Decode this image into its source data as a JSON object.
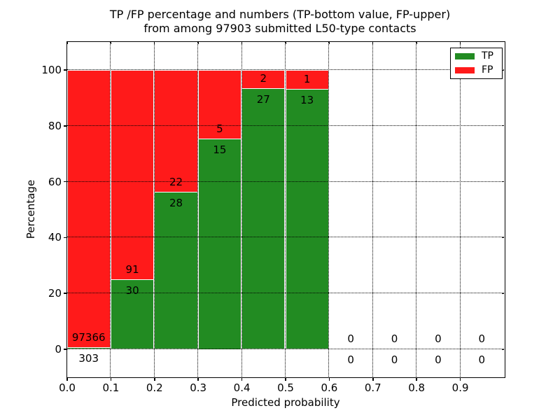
{
  "chart_data": {
    "type": "bar",
    "stacked": true,
    "title_line1": "TP /FP percentage and numbers (TP-bottom value, FP-upper)",
    "title_line2": "from among 97903 submitted L50-type contacts",
    "xlabel": "Predicted probability",
    "ylabel": "Percentage",
    "xlim": [
      0.0,
      1.0
    ],
    "ylim": [
      -9.8,
      110
    ],
    "xticks": [
      "0.0",
      "0.1",
      "0.2",
      "0.3",
      "0.4",
      "0.5",
      "0.6",
      "0.7",
      "0.8",
      "0.9"
    ],
    "yticks": [
      "0",
      "20",
      "40",
      "60",
      "80",
      "100"
    ],
    "grid": "dotted",
    "legend_position": "upper-right",
    "total_submitted": 97903,
    "bins": [
      {
        "range": [
          0.0,
          0.1
        ],
        "tp_count": 303,
        "fp_count": 97366,
        "tp_pct": 0.31,
        "fp_pct": 99.69
      },
      {
        "range": [
          0.1,
          0.2
        ],
        "tp_count": 30,
        "fp_count": 91,
        "tp_pct": 24.79,
        "fp_pct": 75.21
      },
      {
        "range": [
          0.2,
          0.3
        ],
        "tp_count": 28,
        "fp_count": 22,
        "tp_pct": 56.0,
        "fp_pct": 44.0
      },
      {
        "range": [
          0.3,
          0.4
        ],
        "tp_count": 15,
        "fp_count": 5,
        "tp_pct": 75.0,
        "fp_pct": 25.0
      },
      {
        "range": [
          0.4,
          0.5
        ],
        "tp_count": 27,
        "fp_count": 2,
        "tp_pct": 93.1,
        "fp_pct": 6.9
      },
      {
        "range": [
          0.5,
          0.6
        ],
        "tp_count": 13,
        "fp_count": 1,
        "tp_pct": 92.86,
        "fp_pct": 7.14
      },
      {
        "range": [
          0.6,
          0.7
        ],
        "tp_count": 0,
        "fp_count": 0,
        "tp_pct": 0,
        "fp_pct": 0
      },
      {
        "range": [
          0.7,
          0.8
        ],
        "tp_count": 0,
        "fp_count": 0,
        "tp_pct": 0,
        "fp_pct": 0
      },
      {
        "range": [
          0.8,
          0.9
        ],
        "tp_count": 0,
        "fp_count": 0,
        "tp_pct": 0,
        "fp_pct": 0
      },
      {
        "range": [
          0.9,
          1.0
        ],
        "tp_count": 0,
        "fp_count": 0,
        "tp_pct": 0,
        "fp_pct": 0
      }
    ],
    "legend": [
      {
        "label": "TP",
        "color": "#228b22"
      },
      {
        "label": "FP",
        "color": "#ff1a1a"
      }
    ],
    "colors": {
      "tp": "#228b22",
      "fp": "#ff1a1a",
      "grid": "#000000",
      "spine": "#000000",
      "bar_edge": "#ffffff"
    }
  }
}
